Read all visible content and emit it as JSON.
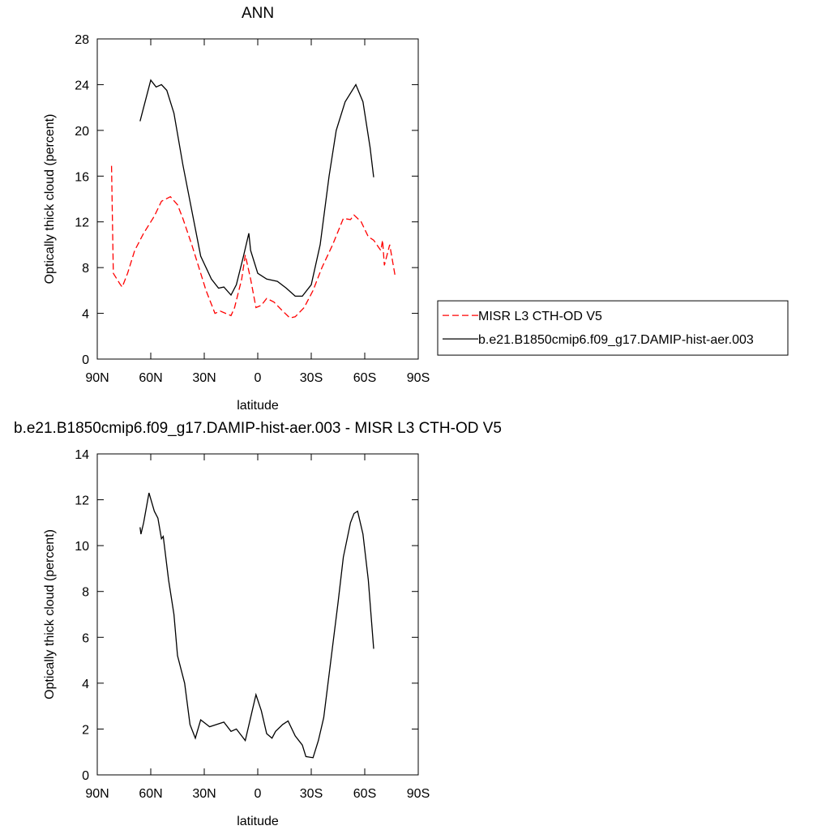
{
  "chart_data": [
    {
      "type": "line",
      "title": "ANN",
      "xlabel": "latitude",
      "ylabel": "Optically thick cloud (percent)",
      "xlim": [
        90,
        -90
      ],
      "ylim": [
        0,
        28
      ],
      "xticks": [
        {
          "value": 90,
          "label": "90N"
        },
        {
          "value": 60,
          "label": "60N"
        },
        {
          "value": 30,
          "label": "30N"
        },
        0,
        {
          "value": -30,
          "label": "30S"
        },
        {
          "value": -60,
          "label": "60S"
        },
        {
          "value": -90,
          "label": "90S"
        }
      ],
      "yticks": [
        0,
        4,
        8,
        12,
        16,
        20,
        24,
        28
      ],
      "legend": "right",
      "series": [
        {
          "name": "MISR L3 CTH-OD V5",
          "color": "#ff0000",
          "dash": "8,4",
          "x": [
            82,
            81,
            77,
            76,
            73,
            69,
            64,
            58,
            54,
            49,
            45,
            42,
            37,
            33,
            29,
            24,
            21,
            15,
            13,
            9,
            7,
            4,
            1,
            -2,
            -5,
            -9,
            -14,
            -18,
            -21,
            -26,
            -31,
            -36,
            -42,
            -48,
            -52,
            -54,
            -58,
            -62,
            -65,
            -69,
            -70,
            -71,
            -74,
            -77
          ],
          "values": [
            16.9,
            7.5,
            6.5,
            6.3,
            7.5,
            9.5,
            11,
            12.5,
            13.8,
            14.2,
            13.5,
            12.3,
            10,
            8,
            6,
            4,
            4.2,
            3.8,
            4.5,
            7,
            9.1,
            7,
            4.5,
            4.7,
            5.3,
            5,
            4.2,
            3.6,
            3.7,
            4.5,
            6,
            8,
            10,
            12.3,
            12.2,
            12.6,
            12,
            10.7,
            10.4,
            9.5,
            10.4,
            8.2,
            10,
            7.3
          ]
        },
        {
          "name": "b.e21.B1850cmip6.f09_g17.DAMIP-hist-aer.003",
          "color": "#000000",
          "x": [
            66,
            64,
            60,
            57,
            54,
            51,
            47,
            42,
            37,
            32,
            26,
            22,
            19,
            15,
            12,
            8,
            5,
            4,
            0,
            -5,
            -11,
            -16,
            -21,
            -25,
            -30,
            -35,
            -40,
            -44,
            -49,
            -55,
            -59,
            -63,
            -65
          ],
          "values": [
            20.8,
            22,
            24.4,
            23.8,
            24,
            23.5,
            21.5,
            17,
            13,
            9,
            7,
            6.2,
            6.3,
            5.6,
            6.5,
            9,
            11,
            9.5,
            7.5,
            7,
            6.8,
            6.2,
            5.5,
            5.5,
            6.5,
            10,
            16,
            20,
            22.5,
            24,
            22.5,
            18.5,
            15.9
          ]
        }
      ]
    },
    {
      "type": "line",
      "title": "b.e21.B1850cmip6.f09_g17.DAMIP-hist-aer.003 - MISR L3 CTH-OD V5",
      "xlabel": "latitude",
      "ylabel": "Optically thick cloud (percent)",
      "xlim": [
        90,
        -90
      ],
      "ylim": [
        0,
        14
      ],
      "xticks": [
        {
          "value": 90,
          "label": "90N"
        },
        {
          "value": 60,
          "label": "60N"
        },
        {
          "value": 30,
          "label": "30N"
        },
        0,
        {
          "value": -30,
          "label": "30S"
        },
        {
          "value": -60,
          "label": "60S"
        },
        {
          "value": -90,
          "label": "90S"
        }
      ],
      "yticks": [
        0,
        2,
        4,
        6,
        8,
        10,
        12,
        14
      ],
      "series": [
        {
          "color": "#000000",
          "x": [
            66,
            65.5,
            64,
            61,
            58,
            56,
            54,
            53,
            50,
            47,
            45,
            41,
            38,
            35,
            32,
            27,
            23,
            19,
            15,
            12,
            7,
            4,
            1,
            -2,
            -5,
            -8,
            -10,
            -14,
            -17,
            -21,
            -25,
            -27,
            -31,
            -34,
            -37,
            -41,
            -45,
            -48,
            -52,
            -54,
            -56,
            -59,
            -62,
            -65
          ],
          "values": [
            10.8,
            10.5,
            11,
            12.3,
            11.5,
            11.2,
            10.3,
            10.4,
            8.5,
            7,
            5.2,
            4,
            2.2,
            1.6,
            2.4,
            2.1,
            2.2,
            2.3,
            1.9,
            2,
            1.5,
            2.5,
            3.5,
            2.8,
            1.8,
            1.6,
            1.9,
            2.2,
            2.35,
            1.7,
            1.3,
            0.8,
            0.75,
            1.5,
            2.5,
            5,
            7.5,
            9.5,
            11,
            11.4,
            11.5,
            10.5,
            8.5,
            5.5
          ]
        }
      ]
    }
  ]
}
